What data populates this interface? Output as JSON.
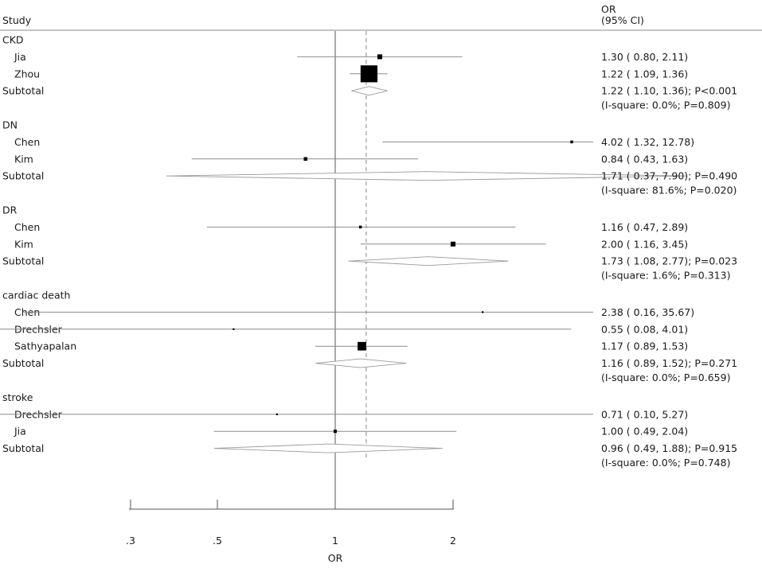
{
  "chart_data": {
    "type": "forest",
    "header": {
      "study": "Study",
      "or": "OR",
      "ci": "(95% CI)"
    },
    "xlabel": "OR",
    "x_scale": "log",
    "xlim": [
      0.07,
      37
    ],
    "reference_line": 1,
    "overall_line": 1.2,
    "axis_ticks": [
      {
        "value": 0.3,
        "label": ".3"
      },
      {
        "value": 0.5,
        "label": ".5"
      },
      {
        "value": 1,
        "label": "1"
      },
      {
        "value": 2,
        "label": "2"
      }
    ],
    "groups": [
      {
        "name": "CKD",
        "studies": [
          {
            "name": "Jia",
            "or": 1.3,
            "lo": 0.8,
            "hi": 2.11,
            "label": "1.30 ( 0.80, 2.11)",
            "weight": 0.9
          },
          {
            "name": "Zhou",
            "or": 1.22,
            "lo": 1.09,
            "hi": 1.36,
            "label": "1.22 ( 1.09, 1.36)",
            "weight": 11
          }
        ],
        "subtotal": {
          "name": "Subtotal",
          "or": 1.22,
          "lo": 1.1,
          "hi": 1.36,
          "label": "1.22 ( 1.10, 1.36); P<0.001",
          "heterogeneity": "(I-square: 0.0%; P=0.809)"
        }
      },
      {
        "name": "DN",
        "studies": [
          {
            "name": "Chen",
            "or": 4.02,
            "lo": 1.32,
            "hi": 12.78,
            "label": "4.02 ( 1.32, 12.78)",
            "weight": 0.3
          },
          {
            "name": "Kim",
            "or": 0.84,
            "lo": 0.43,
            "hi": 1.63,
            "label": "0.84 ( 0.43, 1.63)",
            "weight": 0.5
          }
        ],
        "subtotal": {
          "name": "Subtotal",
          "or": 1.71,
          "lo": 0.37,
          "hi": 7.9,
          "label": "1.71 ( 0.37, 7.90); P=0.490",
          "heterogeneity": "(I-square: 81.6%; P=0.020)"
        }
      },
      {
        "name": "DR",
        "studies": [
          {
            "name": "Chen",
            "or": 1.16,
            "lo": 0.47,
            "hi": 2.89,
            "label": "1.16 ( 0.47, 2.89)",
            "weight": 0.3
          },
          {
            "name": "Kim",
            "or": 2.0,
            "lo": 1.16,
            "hi": 3.45,
            "label": "2.00 ( 1.16, 3.45)",
            "weight": 0.9
          }
        ],
        "subtotal": {
          "name": "Subtotal",
          "or": 1.73,
          "lo": 1.08,
          "hi": 2.77,
          "label": "1.73 ( 1.08, 2.77); P=0.023",
          "heterogeneity": "(I-square: 1.6%; P=0.313)"
        }
      },
      {
        "name": "cardiac death",
        "studies": [
          {
            "name": "Chen",
            "or": 2.38,
            "lo": 0.16,
            "hi": 35.67,
            "label": "2.38 ( 0.16, 35.67)",
            "weight": 0.05
          },
          {
            "name": "Drechsler",
            "or": 0.55,
            "lo": 0.08,
            "hi": 4.01,
            "label": "0.55 ( 0.08, 4.01)",
            "weight": 0.1
          },
          {
            "name": "Sathyapalan",
            "or": 1.17,
            "lo": 0.89,
            "hi": 1.53,
            "label": "1.17 ( 0.89, 1.53)",
            "weight": 2.8
          }
        ],
        "subtotal": {
          "name": "Subtotal",
          "or": 1.16,
          "lo": 0.89,
          "hi": 1.52,
          "label": "1.16 ( 0.89, 1.52); P=0.271",
          "heterogeneity": "(I-square: 0.0%; P=0.659)"
        }
      },
      {
        "name": "stroke",
        "studies": [
          {
            "name": "Drechsler",
            "or": 0.71,
            "lo": 0.1,
            "hi": 5.27,
            "label": "0.71 ( 0.10, 5.27)",
            "weight": 0.1
          },
          {
            "name": "Jia",
            "or": 1.0,
            "lo": 0.49,
            "hi": 2.04,
            "label": "1.00 ( 0.49, 2.04)",
            "weight": 0.4
          }
        ],
        "subtotal": {
          "name": "Subtotal",
          "or": 0.96,
          "lo": 0.49,
          "hi": 1.88,
          "label": "0.96 ( 0.49, 1.88); P=0.915",
          "heterogeneity": "(I-square: 0.0%; P=0.748)"
        }
      }
    ]
  }
}
